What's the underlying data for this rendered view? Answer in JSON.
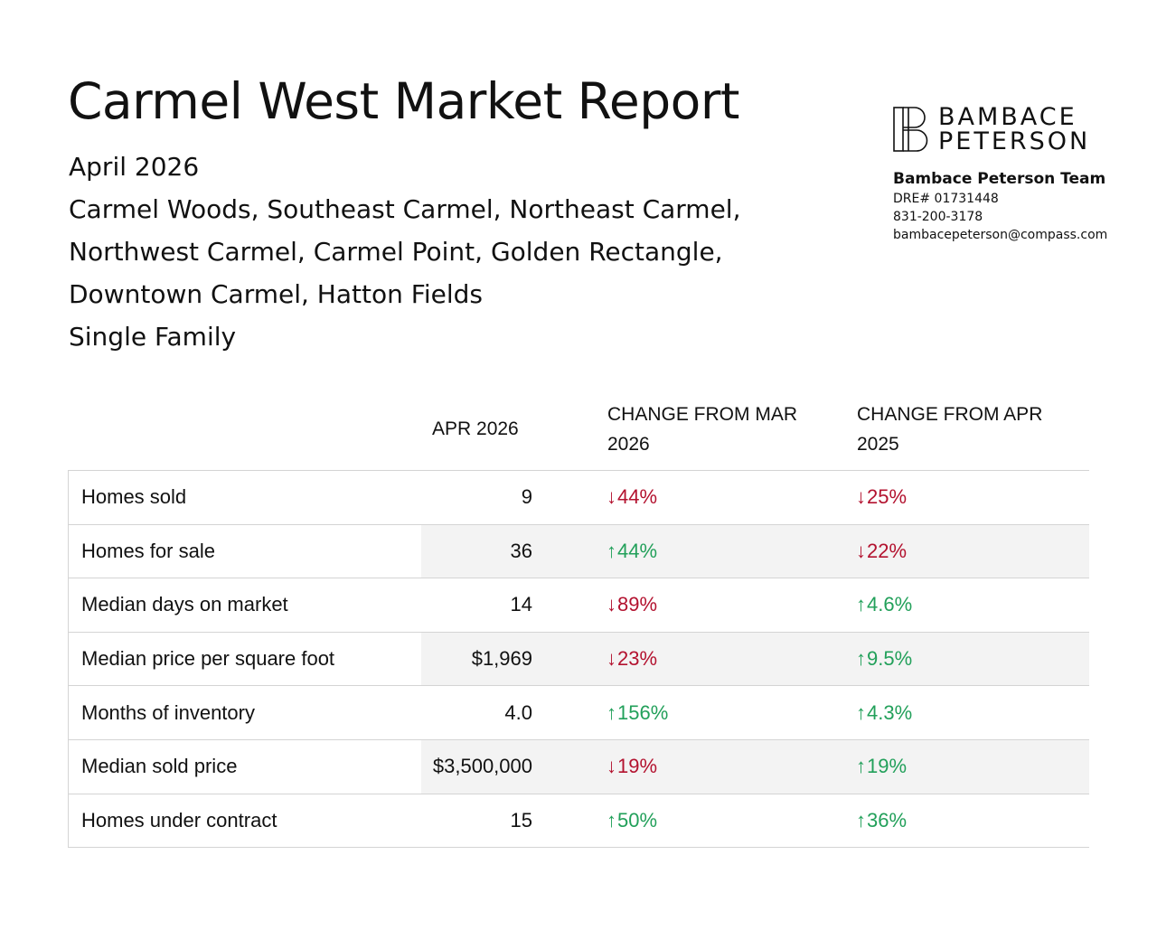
{
  "report": {
    "title": "Carmel West Market Report",
    "period": "April 2026",
    "areas_line1": "Carmel Woods, Southeast Carmel, Northeast Carmel,",
    "areas_line2": "Northwest Carmel, Carmel Point, Golden Rectangle,",
    "areas_line3": "Downtown Carmel, Hatton Fields",
    "property_type": "Single Family"
  },
  "brand": {
    "logo_line1": "BAMBACE",
    "logo_line2": "PETERSON",
    "team": "Bambace Peterson Team",
    "dre": "DRE# 01731448",
    "phone": "831-200-3178",
    "email": "bambacepeterson@compass.com"
  },
  "table": {
    "headers": {
      "label": "",
      "current": "APR 2026",
      "change_mom_line1": "CHANGE FROM MAR",
      "change_mom_line2": "2026",
      "change_yoy_line1": "CHANGE FROM APR",
      "change_yoy_line2": "2025"
    },
    "rows": [
      {
        "label": "Homes sold",
        "value": "9",
        "mom": {
          "dir": "down",
          "text": "44%"
        },
        "yoy": {
          "dir": "down",
          "text": "25%"
        }
      },
      {
        "label": "Homes for sale",
        "value": "36",
        "mom": {
          "dir": "up",
          "text": "44%"
        },
        "yoy": {
          "dir": "down",
          "text": "22%"
        }
      },
      {
        "label": "Median days on market",
        "value": "14",
        "mom": {
          "dir": "down",
          "text": "89%"
        },
        "yoy": {
          "dir": "up",
          "text": "4.6%"
        }
      },
      {
        "label": "Median price per square foot",
        "value": "$1,969",
        "mom": {
          "dir": "down",
          "text": "23%"
        },
        "yoy": {
          "dir": "up",
          "text": "9.5%"
        }
      },
      {
        "label": "Months of inventory",
        "value": "4.0",
        "mom": {
          "dir": "up",
          "text": "156%"
        },
        "yoy": {
          "dir": "up",
          "text": "4.3%"
        }
      },
      {
        "label": "Median sold price",
        "value": "$3,500,000",
        "mom": {
          "dir": "down",
          "text": "19%"
        },
        "yoy": {
          "dir": "up",
          "text": "19%"
        }
      },
      {
        "label": "Homes under contract",
        "value": "15",
        "mom": {
          "dir": "up",
          "text": "50%"
        },
        "yoy": {
          "dir": "up",
          "text": "36%"
        }
      }
    ]
  },
  "colors": {
    "down": "#b3122f",
    "up": "#22a05a",
    "row_shade": "#f3f3f3",
    "border": "#d4d4d4"
  },
  "icons": {
    "down": "arrow-down-icon",
    "up": "arrow-up-icon"
  }
}
